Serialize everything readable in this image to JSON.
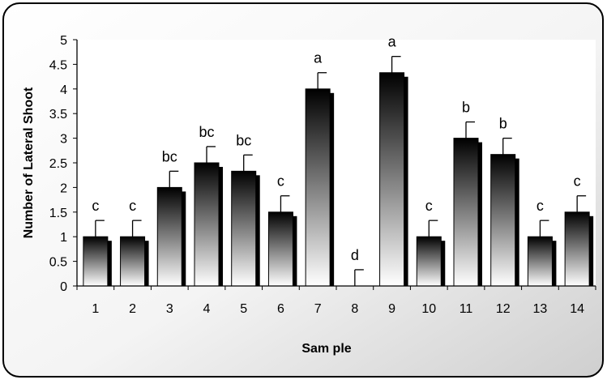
{
  "chart_data": {
    "type": "bar",
    "title": "",
    "xlabel": "Sam ple",
    "ylabel": "Number of Lateral Shoot",
    "ylim": [
      0,
      5
    ],
    "yticks": [
      "0",
      "0.5",
      "1",
      "1.5",
      "2",
      "2.5",
      "3",
      "3.5",
      "4",
      "4.5",
      "5"
    ],
    "categories": [
      "1",
      "2",
      "3",
      "4",
      "5",
      "6",
      "7",
      "8",
      "9",
      "10",
      "11",
      "12",
      "13",
      "14"
    ],
    "values": [
      1,
      1,
      2,
      2.5,
      2.33,
      1.5,
      4,
      0,
      4.33,
      1,
      3,
      2.67,
      1,
      1.5
    ],
    "errors": [
      0.33,
      0.33,
      0.33,
      0.33,
      0.33,
      0.33,
      0.33,
      0.33,
      0.33,
      0.33,
      0.33,
      0.33,
      0.33,
      0.33
    ],
    "letters": [
      "c",
      "c",
      "bc",
      "bc",
      "bc",
      "c",
      "a",
      "d",
      "a",
      "c",
      "b",
      "b",
      "c",
      "c"
    ],
    "grid": false,
    "legend": "none"
  }
}
